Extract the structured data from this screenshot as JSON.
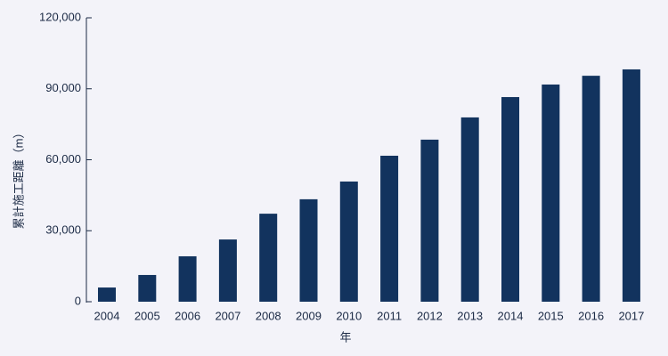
{
  "chart_data": {
    "type": "bar",
    "y_label": "累計施工距離（m）",
    "x_label": "年",
    "categories": [
      "2004",
      "2005",
      "2006",
      "2007",
      "2008",
      "2009",
      "2010",
      "2011",
      "2012",
      "2013",
      "2014",
      "2015",
      "2016",
      "2017"
    ],
    "values": [
      6000,
      11300,
      19200,
      26300,
      37200,
      43300,
      50800,
      61700,
      68500,
      77900,
      86500,
      91800,
      95500,
      98200
    ],
    "color": "#12335e",
    "ylim": [
      0,
      120000
    ],
    "yticks": [
      0,
      {
        "value": 30000,
        "label": "30,000"
      },
      {
        "value": 60000,
        "label": "60,000"
      },
      {
        "value": 90000,
        "label": "90,000"
      },
      {
        "value": 120000,
        "label": "120,000"
      }
    ],
    "grid": false
  }
}
